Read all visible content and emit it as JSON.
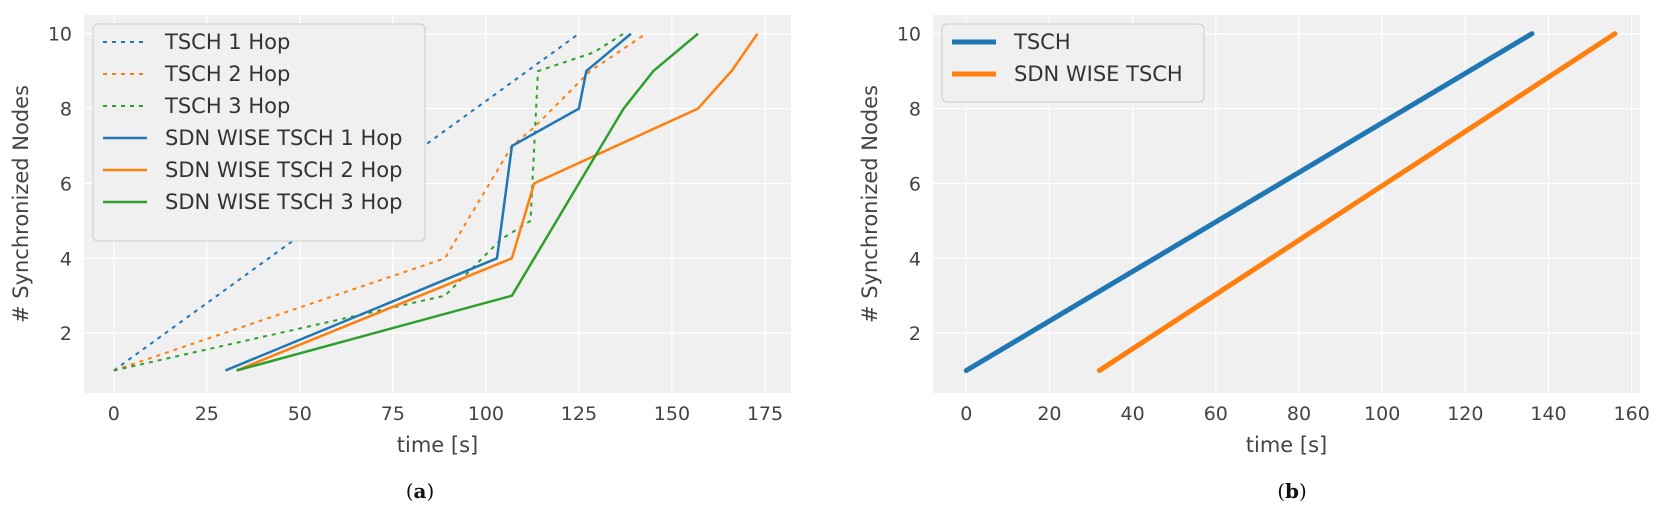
{
  "chart_data": [
    {
      "id": "a",
      "type": "line",
      "caption_open": "(",
      "caption_letter": "a",
      "caption_close": ")",
      "xlabel": "time [s]",
      "ylabel": "# Synchronized Nodes",
      "xlim": [
        -8,
        182
      ],
      "ylim": [
        0.4,
        10.5
      ],
      "xticks": [
        0,
        25,
        50,
        75,
        100,
        125,
        150,
        175
      ],
      "yticks": [
        2,
        4,
        6,
        8,
        10
      ],
      "grid": true,
      "legend_position": "top-left",
      "series": [
        {
          "name": "TSCH 1 Hop",
          "color": "#1f77b4",
          "dash": true,
          "x": [
            0,
            125
          ],
          "y": [
            1,
            10
          ]
        },
        {
          "name": "TSCH 2 Hop",
          "color": "#ff7f0e",
          "dash": true,
          "x": [
            0,
            89,
            101,
            107,
            113,
            128,
            143
          ],
          "y": [
            1,
            4,
            6,
            7,
            7.5,
            9,
            10
          ]
        },
        {
          "name": "TSCH 3 Hop",
          "color": "#2ca02c",
          "dash": true,
          "x": [
            0,
            89,
            104,
            112,
            114,
            129,
            137
          ],
          "y": [
            1,
            3,
            4.5,
            5,
            9,
            9.5,
            10
          ]
        },
        {
          "name": "SDN WISE TSCH 1 Hop",
          "color": "#1f77b4",
          "dash": false,
          "x": [
            30,
            103,
            107,
            125,
            127,
            139
          ],
          "y": [
            1,
            4,
            7,
            8,
            9,
            10
          ]
        },
        {
          "name": "SDN WISE TSCH 2 Hop",
          "color": "#ff7f0e",
          "dash": false,
          "x": [
            33,
            107,
            113,
            157,
            166,
            173
          ],
          "y": [
            1,
            4,
            6,
            8,
            9,
            10
          ]
        },
        {
          "name": "SDN WISE TSCH 3 Hop",
          "color": "#2ca02c",
          "dash": false,
          "x": [
            33,
            107,
            131,
            137,
            145,
            157
          ],
          "y": [
            1,
            3,
            7,
            8,
            9,
            10
          ]
        }
      ]
    },
    {
      "id": "b",
      "type": "line",
      "caption_open": "(",
      "caption_letter": "b",
      "caption_close": ")",
      "xlabel": "time [s]",
      "ylabel": "# Synchronized Nodes",
      "xlim": [
        -8,
        162
      ],
      "ylim": [
        0.4,
        10.5
      ],
      "xticks": [
        0,
        20,
        40,
        60,
        80,
        100,
        120,
        140,
        160
      ],
      "yticks": [
        2,
        4,
        6,
        8,
        10
      ],
      "grid": true,
      "legend_position": "top-left",
      "series": [
        {
          "name": "TSCH",
          "color": "#1f77b4",
          "dash": false,
          "x": [
            0,
            136
          ],
          "y": [
            1,
            10
          ]
        },
        {
          "name": "SDN WISE TSCH",
          "color": "#ff7f0e",
          "dash": false,
          "x": [
            32,
            156
          ],
          "y": [
            1,
            10
          ]
        }
      ]
    }
  ]
}
